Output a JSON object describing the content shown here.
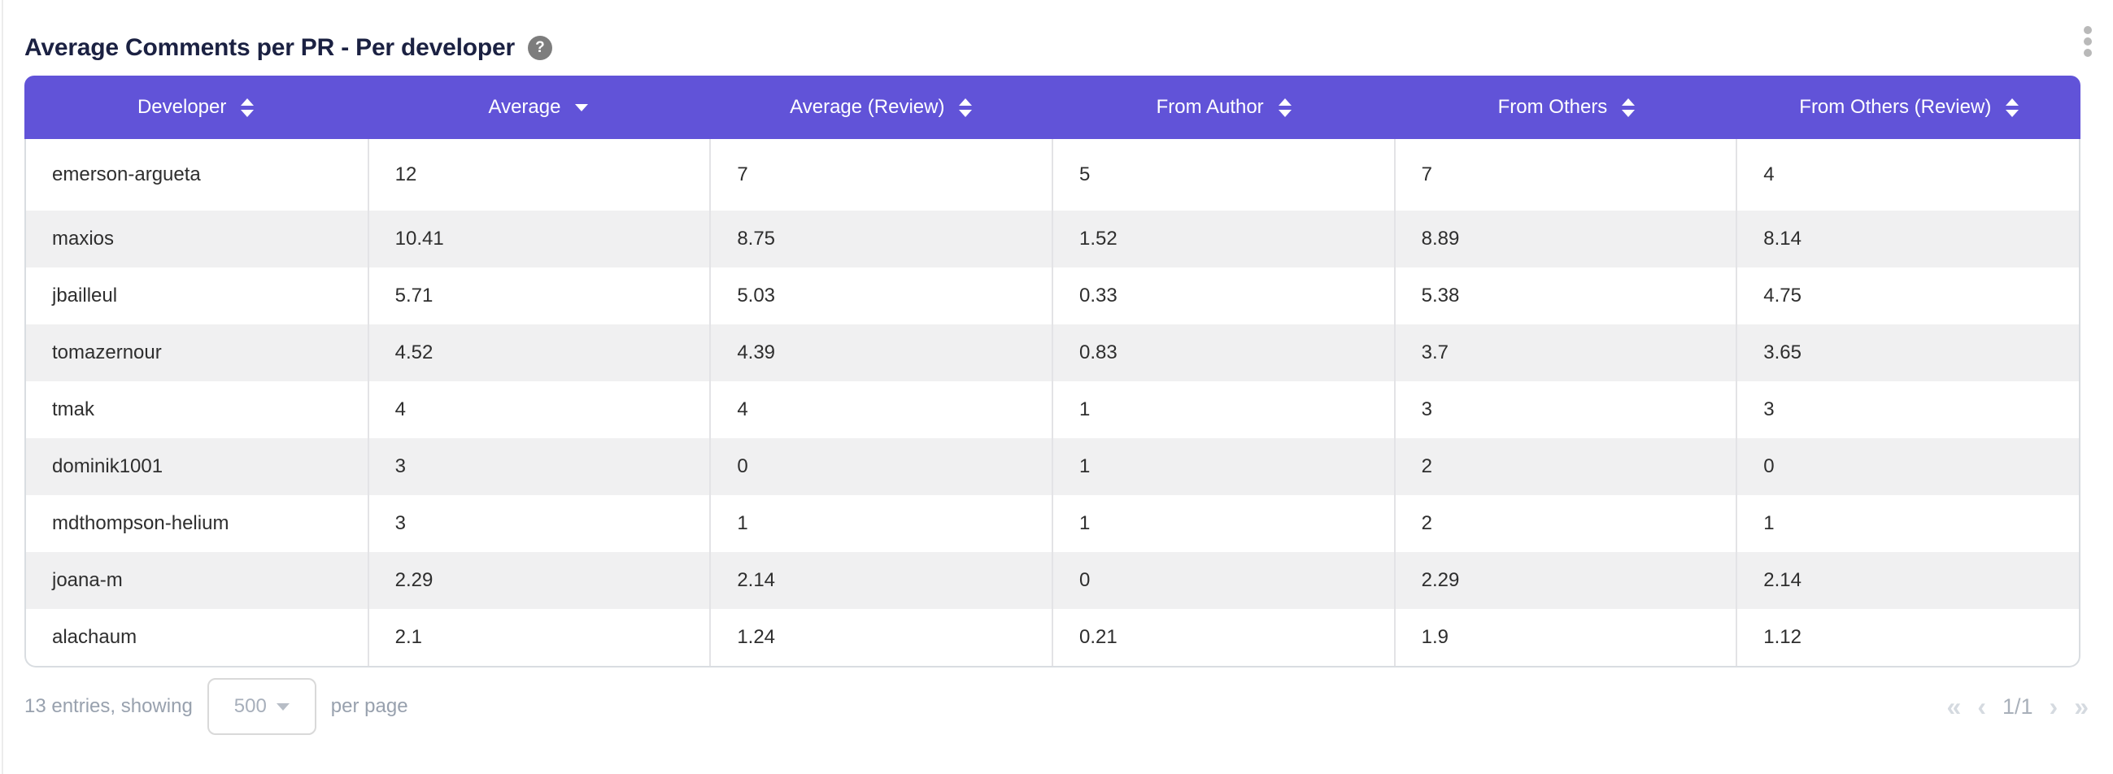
{
  "widget": {
    "title": "Average Comments per PR - Per developer",
    "help_icon": "question-mark-icon",
    "menu_icon": "kebab-menu-icon"
  },
  "table": {
    "columns": [
      {
        "label": "Developer",
        "sort": "both"
      },
      {
        "label": "Average",
        "sort": "desc"
      },
      {
        "label": "Average (Review)",
        "sort": "both"
      },
      {
        "label": "From Author",
        "sort": "both"
      },
      {
        "label": "From Others",
        "sort": "both"
      },
      {
        "label": "From Others (Review)",
        "sort": "both"
      }
    ],
    "rows": [
      [
        "emerson-argueta",
        "12",
        "7",
        "5",
        "7",
        "4"
      ],
      [
        "maxios",
        "10.41",
        "8.75",
        "1.52",
        "8.89",
        "8.14"
      ],
      [
        "jbailleul",
        "5.71",
        "5.03",
        "0.33",
        "5.38",
        "4.75"
      ],
      [
        "tomazernour",
        "4.52",
        "4.39",
        "0.83",
        "3.7",
        "3.65"
      ],
      [
        "tmak",
        "4",
        "4",
        "1",
        "3",
        "3"
      ],
      [
        "dominik1001",
        "3",
        "0",
        "1",
        "2",
        "0"
      ],
      [
        "mdthompson-helium",
        "3",
        "1",
        "1",
        "2",
        "1"
      ],
      [
        "joana-m",
        "2.29",
        "2.14",
        "0",
        "2.29",
        "2.14"
      ],
      [
        "alachaum",
        "2.1",
        "1.24",
        "0.21",
        "1.9",
        "1.12"
      ]
    ]
  },
  "footer": {
    "entries_text": "13 entries, showing",
    "page_size": "500",
    "per_page_text": "per page",
    "pagination": {
      "first": "«",
      "prev": "‹",
      "current": "1/1",
      "next": "›",
      "last": "»"
    }
  },
  "colors": {
    "header_background": "#6153d8",
    "header_text": "#ffffff",
    "title_text": "#1b2142",
    "row_alt_background": "#f0f0f1",
    "body_border": "#d9dde1",
    "footer_text": "#98a1ae"
  }
}
